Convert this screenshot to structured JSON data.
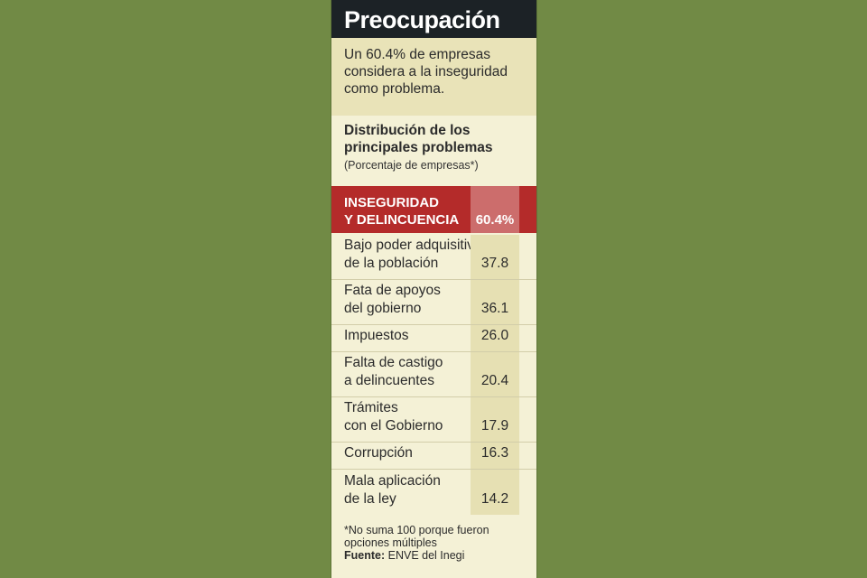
{
  "title": "Preocupación",
  "intro": "Un 60.4% de empresas considera a la inseguridad como problema.",
  "section": {
    "title": "Distribución de los principales problemas",
    "subtitle": "(Porcentaje de empresas*)"
  },
  "highlight": {
    "label": "INSEGURIDAD\nY DELINCUENCIA",
    "value": "60.4%"
  },
  "rows": [
    {
      "label": "Bajo poder adquisitivo\nde la población",
      "value": "37.8"
    },
    {
      "label": "Fata de apoyos\ndel gobierno",
      "value": "36.1"
    },
    {
      "label": "Impuestos",
      "value": "26.0"
    },
    {
      "label": "Falta de castigo\na delincuentes",
      "value": "20.4"
    },
    {
      "label": "Trámites\ncon el Gobierno",
      "value": "17.9"
    },
    {
      "label": "Corrupción",
      "value": "16.3"
    },
    {
      "label": "Mala aplicación\nde la ley",
      "value": "14.2"
    }
  ],
  "footnote": "*No suma 100 porque fueron opciones múltiples",
  "source_label": "Fuente:",
  "source_text": " ENVE del Inegi",
  "colors": {
    "background": "#718a45",
    "highlight": "#b42b2a",
    "header": "#1c2226"
  }
}
